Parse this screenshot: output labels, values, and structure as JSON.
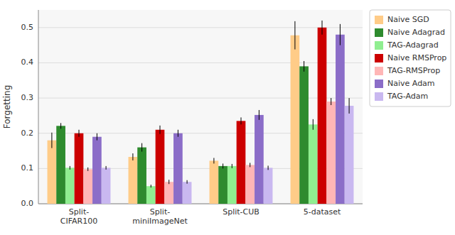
{
  "chart_data": {
    "type": "bar",
    "categories": [
      "Split-\nCIFAR100",
      "Split-\nminiImageNet",
      "Split-CUB",
      "5-dataset"
    ],
    "series": [
      {
        "name": "Naive SGD",
        "color": "#FFCC88",
        "values": [
          0.18,
          0.133,
          0.122,
          0.478
        ],
        "errors": [
          0.022,
          0.01,
          0.008,
          0.04
        ]
      },
      {
        "name": "Naive Adagrad",
        "color": "#2E8B2E",
        "values": [
          0.221,
          0.16,
          0.107,
          0.39
        ],
        "errors": [
          0.008,
          0.012,
          0.007,
          0.015
        ]
      },
      {
        "name": "TAG-Adagrad",
        "color": "#90EE90",
        "values": [
          0.102,
          0.05,
          0.107,
          0.225
        ],
        "errors": [
          0.005,
          0.004,
          0.006,
          0.015
        ]
      },
      {
        "name": "Naive RMSProp",
        "color": "#CC0000",
        "values": [
          0.2,
          0.21,
          0.235,
          0.5
        ],
        "errors": [
          0.01,
          0.012,
          0.01,
          0.02
        ]
      },
      {
        "name": "TAG-RMSProp",
        "color": "#FFB6B6",
        "values": [
          0.098,
          0.062,
          0.11,
          0.29
        ],
        "errors": [
          0.005,
          0.006,
          0.006,
          0.01
        ]
      },
      {
        "name": "Naive Adam",
        "color": "#8B6DC8",
        "values": [
          0.19,
          0.2,
          0.252,
          0.48
        ],
        "errors": [
          0.01,
          0.01,
          0.014,
          0.03
        ]
      },
      {
        "name": "TAG-Adam",
        "color": "#C9B8F0",
        "values": [
          0.102,
          0.062,
          0.102,
          0.278
        ],
        "errors": [
          0.005,
          0.005,
          0.006,
          0.022
        ]
      }
    ],
    "ylabel": "Forgetting",
    "ylim": [
      0.0,
      0.55
    ],
    "yticks": [
      {
        "value": 0.0,
        "label": "0.0"
      },
      0.1,
      0.2,
      0.3,
      0.4,
      0.5
    ],
    "grid": true,
    "legend": "right"
  }
}
